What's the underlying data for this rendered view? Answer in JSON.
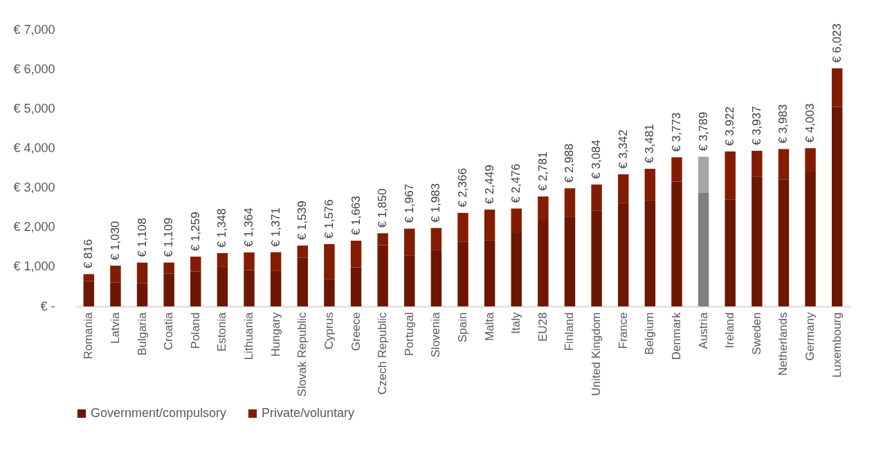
{
  "chart_data": {
    "type": "bar",
    "stacked": true,
    "categories": [
      "Romania",
      "Latvia",
      "Bulgaria",
      "Croatia",
      "Poland",
      "Estonia",
      "Lithuania",
      "Hungary",
      "Slovak Republic",
      "Cyprus",
      "Greece",
      "Czech Republic",
      "Portugal",
      "Slovenia",
      "Spain",
      "Malta",
      "Italy",
      "EU28",
      "Finland",
      "United Kingdom",
      "France",
      "Belgium",
      "Denmark",
      "Austria",
      "Ireland",
      "Sweden",
      "Netherlands",
      "Germany",
      "Luxembourg"
    ],
    "series": [
      {
        "name": "Government/compulsory",
        "color": "#6d1600",
        "colors": [
          "#6d1600",
          "#6d1600",
          "#6d1600",
          "#6d1600",
          "#6d1600",
          "#6d1600",
          "#6d1600",
          "#6d1600",
          "#6d1600",
          "#6d1600",
          "#6d1600",
          "#6d1600",
          "#6d1600",
          "#6d1600",
          "#6d1600",
          "#6d1600",
          "#6d1600",
          "#6d1600",
          "#6d1600",
          "#6d1600",
          "#6d1600",
          "#6d1600",
          "#6d1600",
          "#808080",
          "#6d1600",
          "#6d1600",
          "#6d1600",
          "#6d1600",
          "#6d1600"
        ],
        "values": [
          640,
          600,
          590,
          835,
          885,
          1000,
          920,
          905,
          1240,
          695,
          990,
          1550,
          1290,
          1420,
          1640,
          1675,
          1855,
          2170,
          2260,
          2430,
          2620,
          2690,
          3160,
          2870,
          2710,
          3285,
          3215,
          3395,
          5050
        ]
      },
      {
        "name": "Private/voluntary",
        "color": "#841c00",
        "colors": [
          "#841c00",
          "#841c00",
          "#841c00",
          "#841c00",
          "#841c00",
          "#841c00",
          "#841c00",
          "#841c00",
          "#841c00",
          "#841c00",
          "#841c00",
          "#841c00",
          "#841c00",
          "#841c00",
          "#841c00",
          "#841c00",
          "#841c00",
          "#841c00",
          "#841c00",
          "#841c00",
          "#841c00",
          "#841c00",
          "#841c00",
          "#a6a6a6",
          "#841c00",
          "#841c00",
          "#841c00",
          "#841c00",
          "#841c00"
        ],
        "values": [
          176,
          430,
          518,
          274,
          374,
          348,
          444,
          466,
          299,
          881,
          673,
          300,
          677,
          563,
          726,
          774,
          621,
          611,
          728,
          654,
          722,
          791,
          613,
          919,
          1212,
          652,
          768,
          608,
          973
        ]
      }
    ],
    "totals": [
      "€ 816",
      "€ 1,030",
      "€ 1,108",
      "€ 1,109",
      "€ 1,259",
      "€ 1,348",
      "€ 1,364",
      "€ 1,371",
      "€ 1,539",
      "€ 1,576",
      "€ 1,663",
      "€ 1,850",
      "€ 1,967",
      "€ 1,983",
      "€ 2,366",
      "€ 2,449",
      "€ 2,476",
      "€ 2,781",
      "€ 2,988",
      "€ 3,084",
      "€ 3,342",
      "€ 3,481",
      "€ 3,773",
      "€ 3,789",
      "€ 3,922",
      "€ 3,937",
      "€ 3,983",
      "€ 4,003",
      "€ 6,023"
    ],
    "ylim": [
      0,
      7000
    ],
    "yticks": [
      {
        "value": 0,
        "label": "€ -"
      },
      {
        "value": 1000,
        "label": "€ 1,000"
      },
      {
        "value": 2000,
        "label": "€ 2,000"
      },
      {
        "value": 3000,
        "label": "€ 3,000"
      },
      {
        "value": 4000,
        "label": "€ 4,000"
      },
      {
        "value": 5000,
        "label": "€ 5,000"
      },
      {
        "value": 6000,
        "label": "€ 6,000"
      },
      {
        "value": 7000,
        "label": "€ 7,000"
      }
    ],
    "grid": false,
    "legend": "bottom"
  }
}
